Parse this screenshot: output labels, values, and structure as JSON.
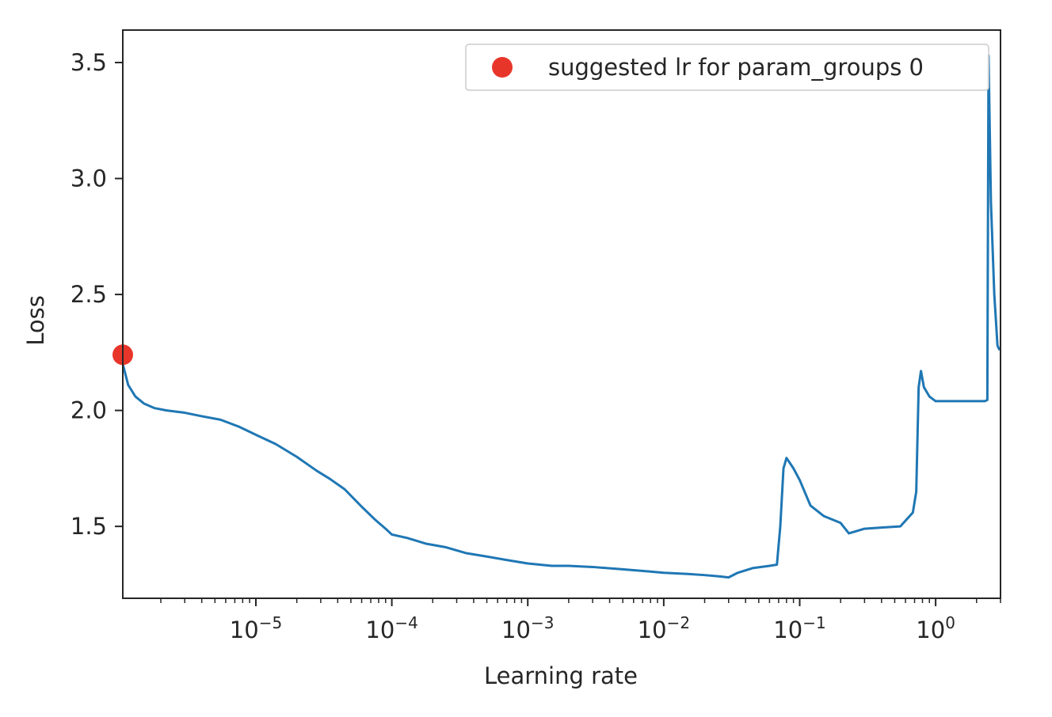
{
  "chart_data": {
    "type": "line",
    "title": "",
    "xlabel": "Learning rate",
    "ylabel": "Loss",
    "xscale": "log",
    "xlim": [
      1.05e-06,
      3.0
    ],
    "ylim": [
      1.19,
      3.64
    ],
    "grid": false,
    "legend_position": "top-right",
    "x_ticks": [
      {
        "base": "10",
        "exp": "−5",
        "value": 1e-05
      },
      {
        "base": "10",
        "exp": "−4",
        "value": 0.0001
      },
      {
        "base": "10",
        "exp": "−3",
        "value": 0.001
      },
      {
        "base": "10",
        "exp": "−2",
        "value": 0.01
      },
      {
        "base": "10",
        "exp": "−1",
        "value": 0.1
      },
      {
        "base": "10",
        "exp": "0",
        "value": 1
      }
    ],
    "y_ticks": [
      {
        "label": "1.5",
        "value": 1.5
      },
      {
        "label": "2.0",
        "value": 2.0
      },
      {
        "label": "2.5",
        "value": 2.5
      },
      {
        "label": "3.0",
        "value": 3.0
      },
      {
        "label": "3.5",
        "value": 3.5
      }
    ],
    "series": [
      {
        "color": "#1f77b4",
        "points": [
          [
            1.05e-06,
            2.2
          ],
          [
            1.15e-06,
            2.11
          ],
          [
            1.3e-06,
            2.06
          ],
          [
            1.5e-06,
            2.03
          ],
          [
            1.8e-06,
            2.01
          ],
          [
            2.2e-06,
            2.0
          ],
          [
            3e-06,
            1.99
          ],
          [
            4e-06,
            1.975
          ],
          [
            5.5e-06,
            1.96
          ],
          [
            7.5e-06,
            1.93
          ],
          [
            1e-05,
            1.895
          ],
          [
            1.4e-05,
            1.855
          ],
          [
            2e-05,
            1.8
          ],
          [
            2.8e-05,
            1.74
          ],
          [
            3.5e-05,
            1.705
          ],
          [
            4.5e-05,
            1.66
          ],
          [
            6e-05,
            1.585
          ],
          [
            7.5e-05,
            1.53
          ],
          [
            9e-05,
            1.49
          ],
          [
            0.0001,
            1.465
          ],
          [
            0.00013,
            1.45
          ],
          [
            0.00018,
            1.425
          ],
          [
            0.00025,
            1.41
          ],
          [
            0.00035,
            1.385
          ],
          [
            0.0005,
            1.37
          ],
          [
            0.0007,
            1.355
          ],
          [
            0.001,
            1.34
          ],
          [
            0.0015,
            1.33
          ],
          [
            0.002,
            1.33
          ],
          [
            0.003,
            1.325
          ],
          [
            0.005,
            1.315
          ],
          [
            0.008,
            1.305
          ],
          [
            0.01,
            1.3
          ],
          [
            0.015,
            1.295
          ],
          [
            0.02,
            1.29
          ],
          [
            0.025,
            1.285
          ],
          [
            0.03,
            1.28
          ],
          [
            0.035,
            1.3
          ],
          [
            0.045,
            1.32
          ],
          [
            0.06,
            1.33
          ],
          [
            0.068,
            1.335
          ],
          [
            0.072,
            1.5
          ],
          [
            0.076,
            1.75
          ],
          [
            0.08,
            1.795
          ],
          [
            0.09,
            1.75
          ],
          [
            0.1,
            1.7
          ],
          [
            0.12,
            1.59
          ],
          [
            0.15,
            1.545
          ],
          [
            0.2,
            1.515
          ],
          [
            0.23,
            1.47
          ],
          [
            0.3,
            1.49
          ],
          [
            0.4,
            1.495
          ],
          [
            0.55,
            1.5
          ],
          [
            0.68,
            1.56
          ],
          [
            0.72,
            1.65
          ],
          [
            0.75,
            2.1
          ],
          [
            0.78,
            2.17
          ],
          [
            0.82,
            2.1
          ],
          [
            0.9,
            2.06
          ],
          [
            1.0,
            2.04
          ],
          [
            1.3,
            2.04
          ],
          [
            1.8,
            2.04
          ],
          [
            2.3,
            2.04
          ],
          [
            2.4,
            2.045
          ],
          [
            2.45,
            3.53
          ],
          [
            2.55,
            2.9
          ],
          [
            2.7,
            2.5
          ],
          [
            2.85,
            2.28
          ],
          [
            2.95,
            2.26
          ]
        ]
      }
    ],
    "suggested_point": {
      "x": 1.05e-06,
      "y": 2.24,
      "color": "#e8352a",
      "label": "suggested lr for param_groups 0"
    }
  }
}
